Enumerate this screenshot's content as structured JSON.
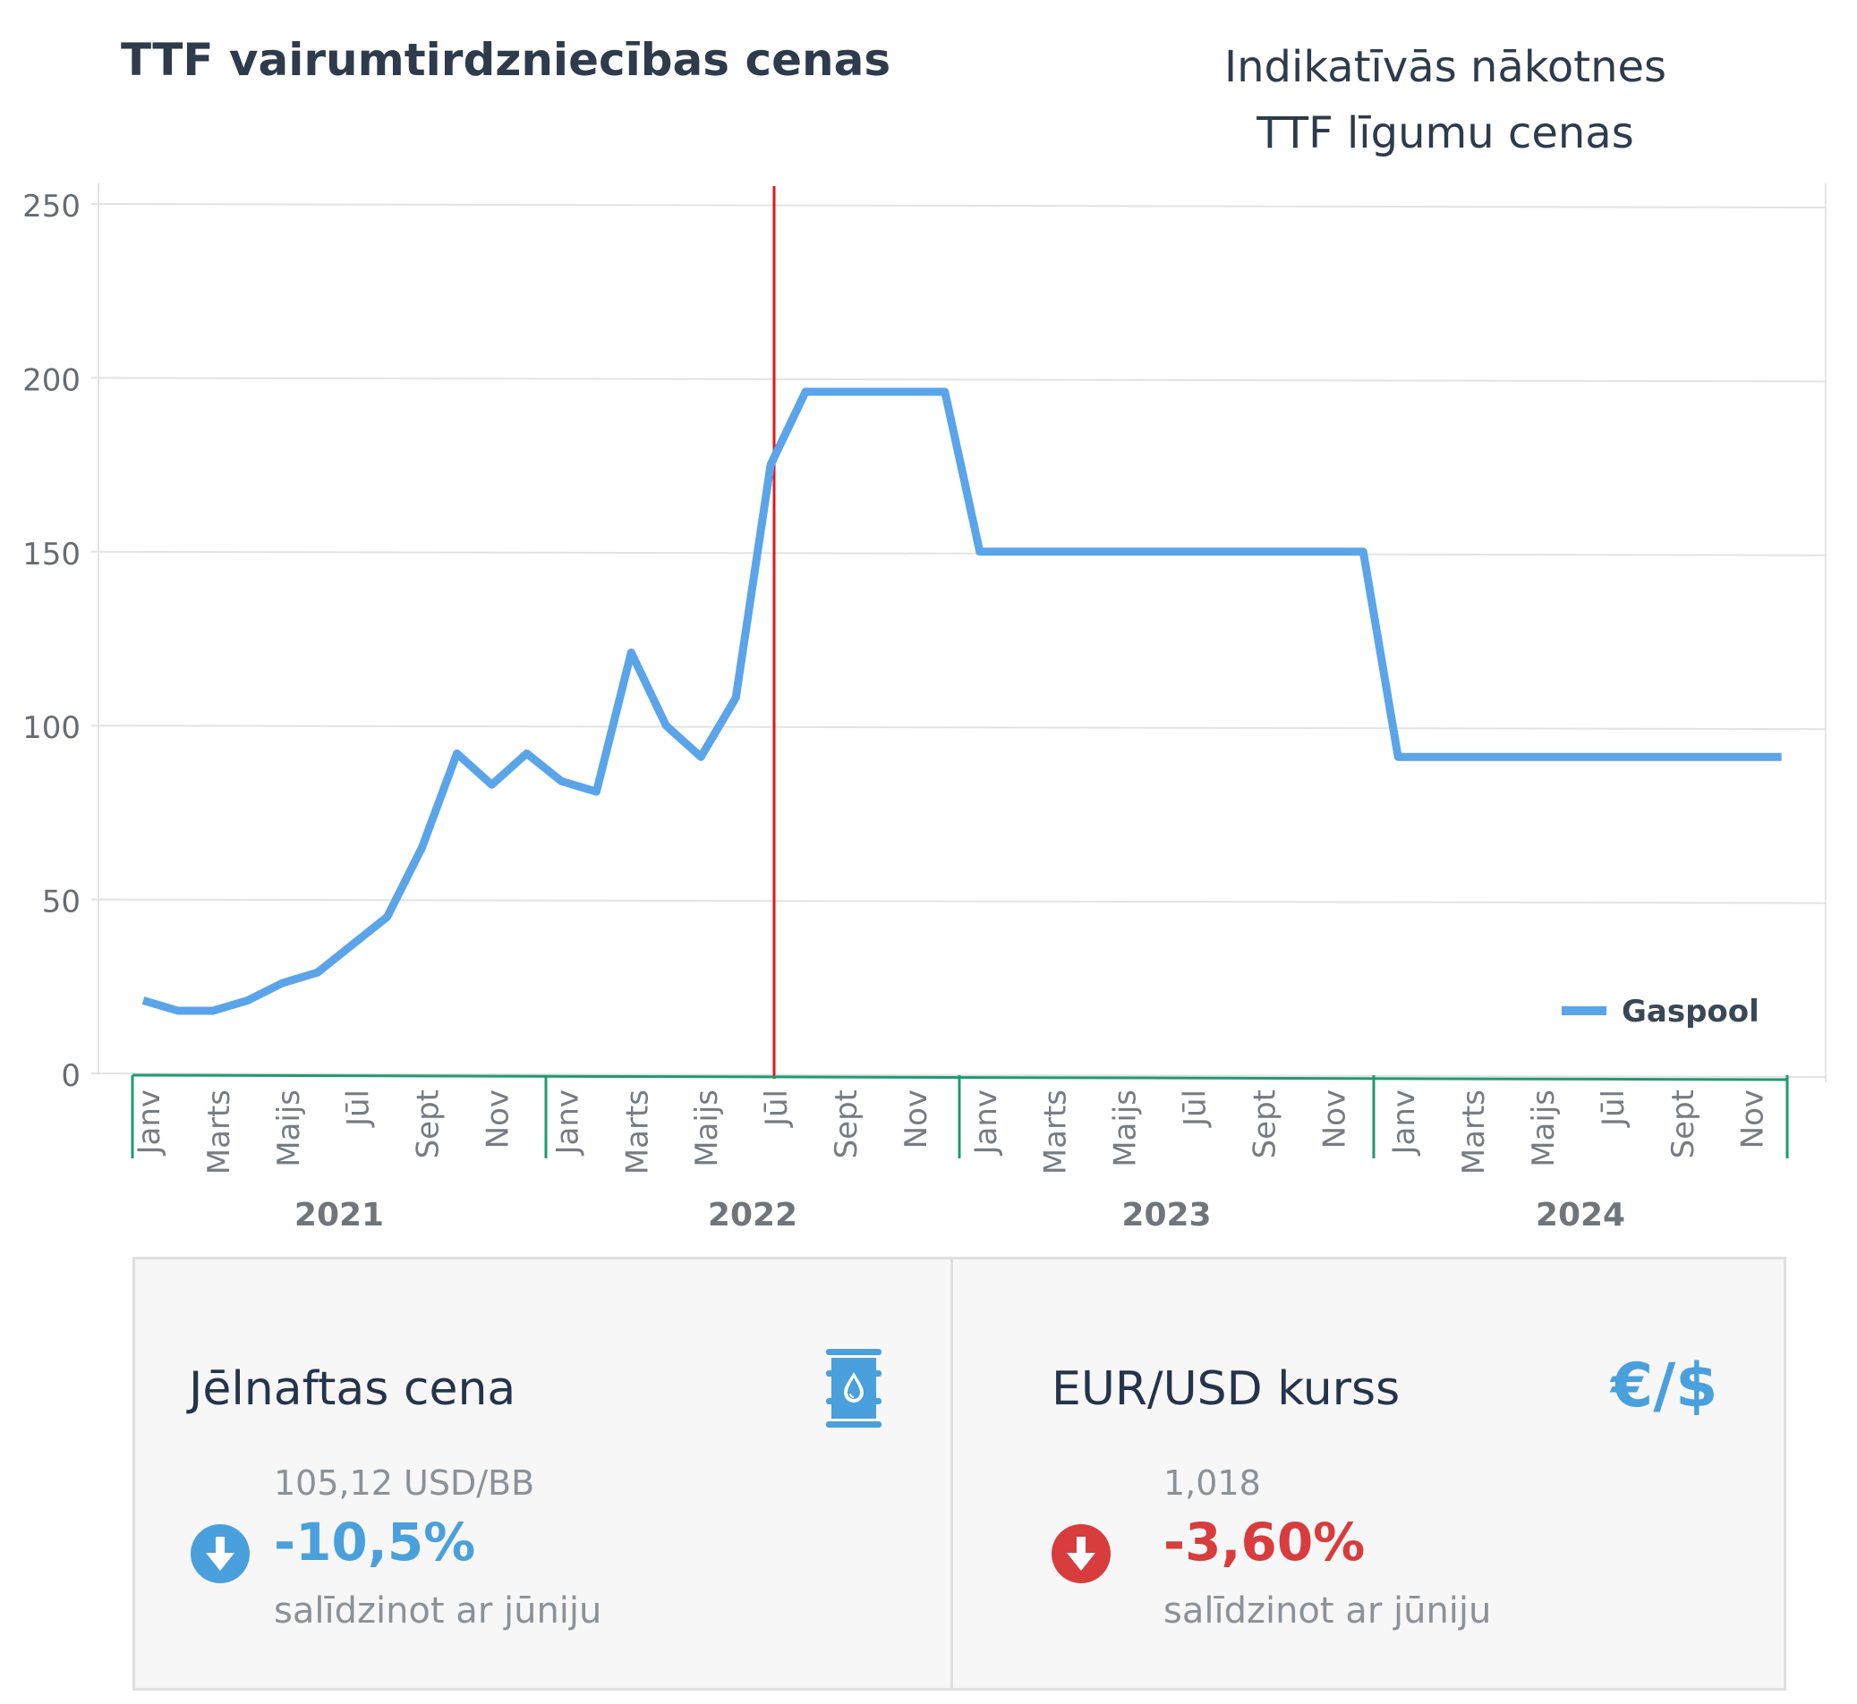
{
  "titles": {
    "left": "TTF vairumtirdzniecības cenas",
    "right_line1": "Indikatīvās nākotnes",
    "right_line2": "TTF līgumu cenas"
  },
  "chart_data": {
    "type": "line",
    "title": "",
    "xlabel": "",
    "ylabel": "",
    "ylim": [
      0,
      250
    ],
    "yticks": [
      "0",
      "50",
      "100",
      "150",
      "200",
      "250"
    ],
    "grid": true,
    "legend_position": "bottom-right",
    "years": [
      "2021",
      "2022",
      "2023",
      "2024"
    ],
    "month_tick_labels": [
      "Janv",
      "Marts",
      "Maijs",
      "Jūl",
      "Sept",
      "Nov"
    ],
    "series": [
      {
        "name": "Gaspool",
        "color": "#5aa4ea",
        "points": [
          [
            0,
            21
          ],
          [
            1,
            18
          ],
          [
            2,
            18
          ],
          [
            3,
            21
          ],
          [
            4,
            26
          ],
          [
            5,
            29
          ],
          [
            6,
            37
          ],
          [
            7,
            45
          ],
          [
            8,
            65
          ],
          [
            9,
            92
          ],
          [
            10,
            83
          ],
          [
            11,
            92
          ],
          [
            12,
            84
          ],
          [
            13,
            81
          ],
          [
            14,
            121
          ],
          [
            15,
            100
          ],
          [
            16,
            91
          ],
          [
            17,
            108
          ],
          [
            18,
            175
          ],
          [
            19,
            196
          ],
          [
            20,
            196
          ],
          [
            21,
            196
          ],
          [
            22,
            196
          ],
          [
            23,
            196
          ],
          [
            24,
            150
          ],
          [
            25,
            150
          ],
          [
            26,
            150
          ],
          [
            27,
            150
          ],
          [
            28,
            150
          ],
          [
            29,
            150
          ],
          [
            30,
            150
          ],
          [
            31,
            150
          ],
          [
            32,
            150
          ],
          [
            33,
            150
          ],
          [
            34,
            150
          ],
          [
            35,
            150
          ],
          [
            36,
            91
          ],
          [
            37,
            91
          ],
          [
            38,
            91
          ],
          [
            39,
            91
          ],
          [
            40,
            91
          ],
          [
            41,
            91
          ],
          [
            42,
            91
          ],
          [
            43,
            91
          ],
          [
            44,
            91
          ],
          [
            45,
            91
          ],
          [
            46,
            91
          ],
          [
            47,
            91
          ]
        ]
      }
    ],
    "vertical_marker": {
      "x_month_index": 18.1,
      "color": "#e01919"
    },
    "axis_bracket_color": "#1f9a72"
  },
  "cards": {
    "oil": {
      "title": "Jēlnaftas cena",
      "value": "105,12 USD/BB",
      "change": "-10,5%",
      "change_color": "#4aa0dc",
      "compare": "salīdzinot ar jūniju",
      "icon": "oil-barrel-icon"
    },
    "fx": {
      "title": "EUR/USD kurss",
      "symbol": "€/$",
      "value": "1,018",
      "change": "-3,60%",
      "change_color": "#d83c3c",
      "compare": "salīdzinot ar jūniju",
      "icon": "arrow-down-circle-icon"
    }
  }
}
